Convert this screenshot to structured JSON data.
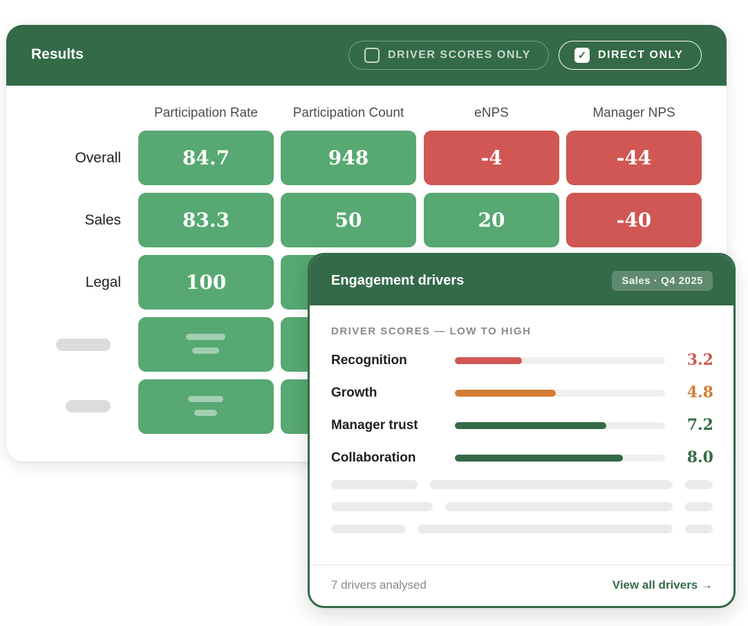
{
  "results": {
    "title": "Results",
    "toggles": {
      "driver_scores_only": {
        "label": "DRIVER SCORES ONLY",
        "checked": false
      },
      "direct_only": {
        "label": "DIRECT ONLY",
        "checked": true,
        "check_glyph": "✓"
      }
    },
    "columns": [
      "Participation Rate",
      "Participation Count",
      "eNPS",
      "Manager NPS"
    ],
    "rows": [
      {
        "label": "Overall",
        "cells": [
          {
            "value": "84.7",
            "status": "good"
          },
          {
            "value": "948",
            "status": "good"
          },
          {
            "value": "-4",
            "status": "bad"
          },
          {
            "value": "-44",
            "status": "bad"
          }
        ]
      },
      {
        "label": "Sales",
        "cells": [
          {
            "value": "83.3",
            "status": "good"
          },
          {
            "value": "50",
            "status": "good"
          },
          {
            "value": "20",
            "status": "good"
          },
          {
            "value": "-40",
            "status": "bad"
          }
        ]
      },
      {
        "label": "Legal",
        "cells": [
          {
            "value": "100",
            "status": "good"
          }
        ]
      }
    ],
    "colors": {
      "header": "#346a48",
      "good": "#57a872",
      "bad": "#d05753"
    }
  },
  "drivers": {
    "title": "Engagement drivers",
    "badge": "Sales · Q4 2025",
    "section_label": "DRIVER SCORES — LOW TO HIGH",
    "items": [
      {
        "name": "Recognition",
        "score": "3.2",
        "fill": 0.32,
        "color": "#d05753"
      },
      {
        "name": "Growth",
        "score": "4.8",
        "fill": 0.48,
        "color": "#d27d35"
      },
      {
        "name": "Manager trust",
        "score": "7.2",
        "fill": 0.72,
        "color": "#346a48"
      },
      {
        "name": "Collaboration",
        "score": "8.0",
        "fill": 0.8,
        "color": "#346a48"
      }
    ],
    "footer_count": "7 drivers analysed",
    "footer_link": "View all drivers →"
  }
}
